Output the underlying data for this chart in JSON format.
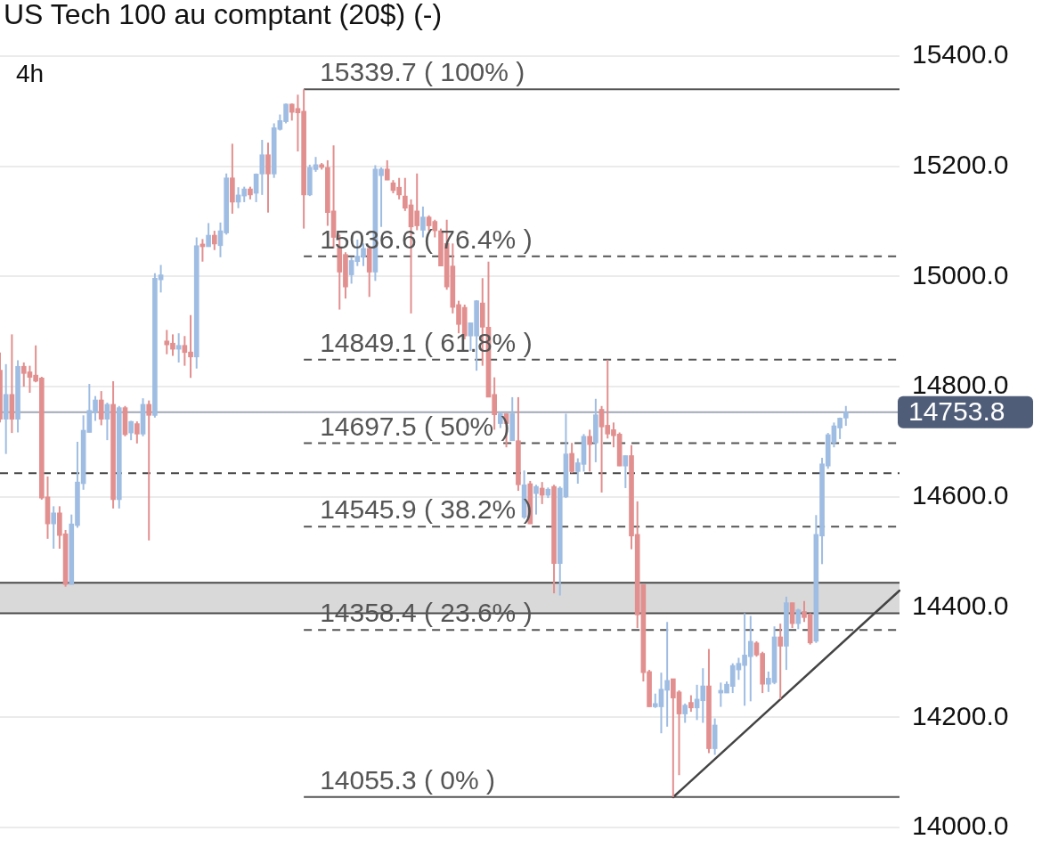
{
  "chart_data": {
    "type": "candlestick",
    "title": "US Tech 100 au comptant (20$) (-)",
    "subtitle": "4h",
    "categories": [
      null,
      null,
      null,
      null,
      null,
      null,
      null,
      null,
      null,
      null,
      null,
      null,
      null,
      null,
      null,
      null,
      null,
      null,
      null,
      null,
      null,
      null,
      null,
      null,
      null,
      null,
      null,
      null,
      null,
      null,
      null,
      null,
      null,
      null,
      null,
      null,
      null,
      null,
      null,
      null,
      null,
      null,
      null,
      null,
      null,
      null,
      null,
      null,
      null,
      null,
      null,
      null,
      null,
      null,
      null,
      null,
      null,
      null,
      null,
      null,
      null,
      null,
      null,
      null,
      null,
      null,
      null,
      null,
      null,
      null,
      null,
      null,
      null,
      null,
      null,
      null,
      null,
      null,
      null,
      null,
      null,
      null,
      null,
      null,
      null,
      null,
      null,
      null,
      null,
      null,
      null,
      null,
      null,
      null,
      null,
      null,
      null,
      null,
      null,
      null,
      null,
      null,
      null,
      null,
      null,
      null,
      null,
      null,
      null,
      null,
      null,
      null,
      null,
      null,
      null,
      null,
      null,
      null,
      null,
      null,
      null,
      null,
      null,
      null,
      null,
      null,
      null,
      null,
      null,
      null,
      null,
      null,
      null,
      null,
      null,
      null,
      null,
      null,
      null,
      null,
      null,
      null,
      null,
      null,
      null,
      null,
      null,
      null,
      null,
      null,
      null,
      null
    ],
    "ohlc": [
      [
        14830,
        14862,
        14735,
        14741
      ],
      [
        14741,
        14841,
        14678,
        14786
      ],
      [
        14786,
        14895,
        14716,
        14741
      ],
      [
        14741,
        14848,
        14717,
        14837
      ],
      [
        14837,
        14844,
        14800,
        14824
      ],
      [
        14827,
        14838,
        14789,
        14817
      ],
      [
        14821,
        14875,
        14808,
        14810
      ],
      [
        14816,
        14818,
        14595,
        14598
      ],
      [
        14600,
        14637,
        14524,
        14551
      ],
      [
        14551,
        14583,
        14506,
        14571
      ],
      [
        14571,
        14583,
        14506,
        14530
      ],
      [
        14533,
        14540,
        14437,
        14441
      ],
      [
        14441,
        14568,
        14441,
        14551
      ],
      [
        14548,
        14700,
        14544,
        14627
      ],
      [
        14624,
        14748,
        14613,
        14721
      ],
      [
        14717,
        14805,
        14717,
        14757
      ],
      [
        14754,
        14783,
        14738,
        14776
      ],
      [
        14776,
        14792,
        14730,
        14741
      ],
      [
        14741,
        14771,
        14703,
        14768
      ],
      [
        14768,
        14810,
        14579,
        14595
      ],
      [
        14595,
        14765,
        14579,
        14762
      ],
      [
        14762,
        14765,
        14710,
        14713
      ],
      [
        14716,
        14738,
        14703,
        14737
      ],
      [
        14733,
        14737,
        14697,
        14714
      ],
      [
        14714,
        14779,
        14710,
        14768
      ],
      [
        14768,
        14775,
        14521,
        14748
      ],
      [
        14748,
        15006,
        14744,
        14997
      ],
      [
        14994,
        15021,
        14971,
        15003
      ],
      [
        14883,
        14903,
        14859,
        14876
      ],
      [
        14879,
        14895,
        14856,
        14868
      ],
      [
        14868,
        14897,
        14844,
        14875
      ],
      [
        14875,
        14892,
        14838,
        14862
      ],
      [
        14863,
        14930,
        14816,
        14854
      ],
      [
        14854,
        15071,
        14833,
        15056
      ],
      [
        15059,
        15068,
        15027,
        15054
      ],
      [
        15054,
        15097,
        15054,
        15075
      ],
      [
        15075,
        15083,
        15048,
        15059
      ],
      [
        15056,
        15098,
        15035,
        15083
      ],
      [
        15079,
        15187,
        15076,
        15179
      ],
      [
        15179,
        15241,
        15114,
        15135
      ],
      [
        15135,
        15162,
        15124,
        15148
      ],
      [
        15146,
        15163,
        15135,
        15159
      ],
      [
        15159,
        15163,
        15140,
        15148
      ],
      [
        15151,
        15187,
        15135,
        15186
      ],
      [
        15186,
        15248,
        15148,
        15221
      ],
      [
        15221,
        15243,
        15116,
        15186
      ],
      [
        15186,
        15278,
        15179,
        15270
      ],
      [
        15267,
        15294,
        15265,
        15283
      ],
      [
        15281,
        15314,
        15278,
        15313
      ],
      [
        15313,
        15314,
        15283,
        15298
      ],
      [
        15305,
        15330,
        15227,
        15297
      ],
      [
        15300,
        15339.7,
        15087,
        15148
      ],
      [
        15148,
        15203,
        15146,
        15198
      ],
      [
        15194,
        15217,
        15190,
        15203
      ],
      [
        15203,
        15206,
        15194,
        15198
      ],
      [
        15198,
        15211,
        15092,
        15116
      ],
      [
        15119,
        15238,
        15051,
        15071
      ],
      [
        15052,
        15076,
        14940,
        15008
      ],
      [
        15040,
        15044,
        14960,
        14981
      ],
      [
        15003,
        15035,
        14987,
        15029
      ],
      [
        15027,
        15067,
        15019,
        15037
      ],
      [
        15035,
        15060,
        15019,
        15051
      ],
      [
        15051,
        15056,
        14963,
        15008
      ],
      [
        15008,
        15202,
        14992,
        15195
      ],
      [
        15183,
        15198,
        15090,
        15195
      ],
      [
        15195,
        15211,
        15175,
        15175
      ],
      [
        15170,
        15175,
        15151,
        15156
      ],
      [
        15162,
        15179,
        15140,
        15148
      ],
      [
        15146,
        15179,
        15119,
        15124
      ],
      [
        15130,
        15140,
        14933,
        15090
      ],
      [
        15119,
        15187,
        15084,
        15092
      ],
      [
        15084,
        15127,
        15071,
        15108
      ],
      [
        15108,
        15111,
        15083,
        15092
      ],
      [
        15100,
        15103,
        15071,
        15083
      ],
      [
        15083,
        15087,
        15019,
        15019
      ],
      [
        15060,
        15103,
        14976,
        14981
      ],
      [
        15019,
        15060,
        14933,
        14944
      ],
      [
        14949,
        14956,
        14897,
        14913
      ],
      [
        14944,
        14949,
        14886,
        14892
      ],
      [
        14892,
        14916,
        14865,
        14916
      ],
      [
        14892,
        14957,
        14829,
        14956
      ],
      [
        14952,
        14997,
        14838,
        14908
      ],
      [
        14908,
        15027,
        14781,
        14781
      ],
      [
        14786,
        14817,
        14722,
        14749
      ],
      [
        14733,
        14754,
        14725,
        14751
      ],
      [
        14751,
        14751,
        14690,
        14733
      ],
      [
        14702,
        14781,
        14702,
        14751
      ],
      [
        14702,
        14781,
        14611,
        14622
      ],
      [
        14563,
        14648,
        14560,
        14622
      ],
      [
        14624,
        14629,
        14551,
        14551
      ],
      [
        14606,
        14622,
        14568,
        14619
      ],
      [
        14616,
        14627,
        14587,
        14603
      ],
      [
        14603,
        14617,
        14598,
        14614
      ],
      [
        14619,
        14622,
        14425,
        14479
      ],
      [
        14479,
        14619,
        14421,
        14616
      ],
      [
        14600,
        14751,
        14598,
        14678
      ],
      [
        14679,
        14698,
        14643,
        14646
      ],
      [
        14646,
        14670,
        14624,
        14662
      ],
      [
        14659,
        14714,
        14646,
        14710
      ],
      [
        14710,
        14722,
        14646,
        14695
      ],
      [
        14698,
        14778,
        14663,
        14749
      ],
      [
        14759,
        14765,
        14608,
        14727
      ],
      [
        14730,
        14849.1,
        14706,
        14714
      ],
      [
        14722,
        14735,
        14690,
        14711
      ],
      [
        14714,
        14717,
        14656,
        14656
      ],
      [
        14656,
        14675,
        14616,
        14675
      ],
      [
        14675,
        14694,
        14505,
        14529
      ],
      [
        14532,
        14592,
        14362,
        14386
      ],
      [
        14441,
        14441,
        14265,
        14281
      ],
      [
        14283,
        14286,
        14219,
        14219
      ],
      [
        14219,
        14243,
        14217,
        14225
      ],
      [
        14219,
        14281,
        14171,
        14251
      ],
      [
        14249,
        14373,
        14183,
        14267
      ],
      [
        14270,
        14270,
        14055.3,
        14235
      ],
      [
        14246,
        14249,
        14095,
        14206
      ],
      [
        14206,
        14225,
        14190,
        14222
      ],
      [
        14227,
        14240,
        14210,
        14217
      ],
      [
        14217,
        14259,
        14195,
        14233
      ],
      [
        14230,
        14289,
        14190,
        14257
      ],
      [
        14257,
        14324,
        14135,
        14143
      ],
      [
        14143,
        14198,
        14132,
        14186
      ],
      [
        14244,
        14263,
        14219,
        14249
      ],
      [
        14244,
        14265,
        14244,
        14260
      ],
      [
        14256,
        14298,
        14244,
        14294
      ],
      [
        14286,
        14308,
        14268,
        14298
      ],
      [
        14294,
        14389,
        14221,
        14313
      ],
      [
        14310,
        14384,
        14229,
        14338
      ],
      [
        14335,
        14338,
        14310,
        14313
      ],
      [
        14316,
        14319,
        14244,
        14260
      ],
      [
        14260,
        14283,
        14246,
        14271
      ],
      [
        14263,
        14365,
        14260,
        14346
      ],
      [
        14346,
        14370,
        14233,
        14329
      ],
      [
        14329,
        14419,
        14286,
        14408
      ],
      [
        14408,
        14408,
        14362,
        14370
      ],
      [
        14370,
        14397,
        14360,
        14395
      ],
      [
        14392,
        14411,
        14373,
        14381
      ],
      [
        14387,
        14389,
        14332,
        14335
      ],
      [
        14338,
        14567,
        14335,
        14532
      ],
      [
        14529,
        14671,
        14478,
        14660
      ],
      [
        14656,
        14716,
        14651,
        14713
      ],
      [
        14698,
        14735,
        14690,
        14729
      ],
      [
        14725,
        14744,
        14705,
        14743
      ],
      [
        14743,
        14765,
        14729,
        14753.8
      ],
      null,
      null,
      null,
      null,
      null,
      null,
      null,
      null,
      null
    ],
    "colors": [
      "#e28f8f",
      "#9fbde2",
      "#e28f8f",
      "#9fbde2",
      "#e28f8f",
      "#e28f8f",
      "#e28f8f",
      "#e28f8f",
      "#e28f8f",
      "#9fbde2",
      "#e28f8f",
      "#e28f8f",
      "#9fbde2",
      "#9fbde2",
      "#9fbde2",
      "#9fbde2",
      "#9fbde2",
      "#e28f8f",
      "#9fbde2",
      "#e28f8f",
      "#9fbde2",
      "#e28f8f",
      "#9fbde2",
      "#e28f8f",
      "#9fbde2",
      "#e28f8f",
      "#9fbde2",
      "#9fbde2",
      "#e28f8f",
      "#e28f8f",
      "#9fbde2",
      "#e28f8f",
      "#e28f8f",
      "#9fbde2",
      "#e28f8f",
      "#9fbde2",
      "#e28f8f",
      "#9fbde2",
      "#9fbde2",
      "#e28f8f",
      "#9fbde2",
      "#9fbde2",
      "#e28f8f",
      "#9fbde2",
      "#9fbde2",
      "#e28f8f",
      "#9fbde2",
      "#9fbde2",
      "#9fbde2",
      "#e28f8f",
      "#e28f8f",
      "#e28f8f",
      "#9fbde2",
      "#9fbde2",
      "#e28f8f",
      "#e28f8f",
      "#e28f8f",
      "#e28f8f",
      "#e28f8f",
      "#9fbde2",
      "#9fbde2",
      "#9fbde2",
      "#e28f8f",
      "#9fbde2",
      "#9fbde2",
      "#e28f8f",
      "#e28f8f",
      "#e28f8f",
      "#e28f8f",
      "#e28f8f",
      "#e28f8f",
      "#9fbde2",
      "#e28f8f",
      "#e28f8f",
      "#e28f8f",
      "#e28f8f",
      "#e28f8f",
      "#e28f8f",
      "#e28f8f",
      "#9fbde2",
      "#9fbde2",
      "#e28f8f",
      "#e28f8f",
      "#e28f8f",
      "#9fbde2",
      "#e28f8f",
      "#9fbde2",
      "#e28f8f",
      "#9fbde2",
      "#e28f8f",
      "#9fbde2",
      "#e28f8f",
      "#9fbde2",
      "#e28f8f",
      "#9fbde2",
      "#9fbde2",
      "#e28f8f",
      "#9fbde2",
      "#9fbde2",
      "#e28f8f",
      "#9fbde2",
      "#e28f8f",
      "#e28f8f",
      "#e28f8f",
      "#e28f8f",
      "#9fbde2",
      "#e28f8f",
      "#e28f8f",
      "#e28f8f",
      "#e28f8f",
      "#9fbde2",
      "#9fbde2",
      "#9fbde2",
      "#e28f8f",
      "#e28f8f",
      "#9fbde2",
      "#e28f8f",
      "#9fbde2",
      "#9fbde2",
      "#e28f8f",
      "#9fbde2",
      "#9fbde2",
      "#9fbde2",
      "#9fbde2",
      "#9fbde2",
      "#9fbde2",
      "#9fbde2",
      "#e28f8f",
      "#e28f8f",
      "#9fbde2",
      "#9fbde2",
      "#e28f8f",
      "#9fbde2",
      "#e28f8f",
      "#9fbde2",
      "#e28f8f",
      "#e28f8f",
      "#9fbde2",
      "#9fbde2",
      "#9fbde2",
      "#9fbde2",
      "#9fbde2",
      "#9fbde2",
      null,
      null,
      null,
      null,
      null,
      null,
      null,
      null,
      null
    ],
    "series": [
      {
        "type": "line",
        "color": "#444444",
        "values": [
          null,
          null,
          null,
          null,
          null,
          null,
          null,
          null,
          null,
          null,
          null,
          null,
          null,
          null,
          null,
          null,
          null,
          null,
          null,
          null,
          null,
          null,
          null,
          null,
          null,
          null,
          null,
          null,
          null,
          null,
          null,
          null,
          null,
          null,
          null,
          null,
          null,
          null,
          null,
          null,
          null,
          null,
          null,
          null,
          null,
          null,
          null,
          null,
          null,
          null,
          null,
          null,
          null,
          null,
          null,
          null,
          null,
          null,
          null,
          null,
          null,
          null,
          null,
          null,
          null,
          null,
          null,
          null,
          null,
          null,
          null,
          null,
          null,
          null,
          null,
          null,
          null,
          null,
          null,
          null,
          null,
          null,
          null,
          null,
          null,
          null,
          null,
          null,
          null,
          null,
          null,
          null,
          null,
          null,
          null,
          null,
          null,
          null,
          null,
          null,
          null,
          null,
          null,
          null,
          null,
          null,
          null,
          null,
          null,
          null,
          null,
          null,
          null,
          14055,
          null,
          null,
          null,
          null,
          null,
          null,
          null,
          null,
          null,
          null,
          null,
          null,
          null,
          null,
          null,
          null,
          null,
          null,
          null,
          null,
          null,
          null,
          null,
          null,
          null,
          null,
          null,
          null,
          null,
          null,
          null,
          null,
          null,
          null,
          null,
          null,
          null,
          14430
        ]
      }
    ],
    "ylim": [
      14000,
      15400
    ],
    "yticks": [
      {
        "value": 14000,
        "label": "14000.0"
      },
      {
        "value": 14200,
        "label": "14200.0"
      },
      {
        "value": 14400,
        "label": "14400.0"
      },
      {
        "value": 14600,
        "label": "14600.0"
      },
      {
        "value": 14800,
        "label": "14800.0"
      },
      {
        "value": 15000,
        "label": "15000.0"
      },
      {
        "value": 15200,
        "label": "15200.0"
      },
      {
        "value": 15400,
        "label": "15400.0"
      }
    ],
    "grid": "y",
    "tick_labels": "y",
    "bands": [
      {
        "axis": "y",
        "from": 14389,
        "to": 14444,
        "color": "#d9d9d9"
      }
    ],
    "ref_lines": [
      {
        "axis": "y",
        "value": 15339.7,
        "label": "15339.7 ( 100% )",
        "color": "#555555",
        "line_style": "solid"
      },
      {
        "axis": "y",
        "value": 15036.6,
        "label": "15036.6 ( 76.4% )",
        "color": "#555555",
        "line_style": "dashed"
      },
      {
        "axis": "y",
        "value": 14849.1,
        "label": "14849.1 ( 61.8% )",
        "color": "#555555",
        "line_style": "dashed"
      },
      {
        "axis": "y",
        "value": 14697.5,
        "label": "14697.5 ( 50% )",
        "color": "#555555",
        "line_style": "dashed"
      },
      {
        "axis": "y",
        "value": 14545.9,
        "label": "14545.9 ( 38.2% )",
        "color": "#555555",
        "line_style": "dashed"
      },
      {
        "axis": "y",
        "value": 14358.4,
        "label": "14358.4 ( 23.6% )",
        "color": "#555555",
        "line_style": "dashed"
      },
      {
        "axis": "y",
        "value": 14055.3,
        "label": "14055.3 ( 0% )",
        "color": "#555555",
        "line_style": "solid"
      },
      {
        "axis": "y",
        "value": 14643,
        "color": "#444444",
        "line_style": "dashed"
      },
      {
        "axis": "y",
        "value": 14444,
        "color": "#4a4a4a",
        "line_style": "solid"
      },
      {
        "axis": "y",
        "value": 14389,
        "color": "#4a4a4a",
        "line_style": "solid"
      },
      {
        "axis": "y",
        "value": 14753.8,
        "label": "14753.8",
        "color": "#a0a8b6",
        "line_style": "solid"
      }
    ]
  }
}
